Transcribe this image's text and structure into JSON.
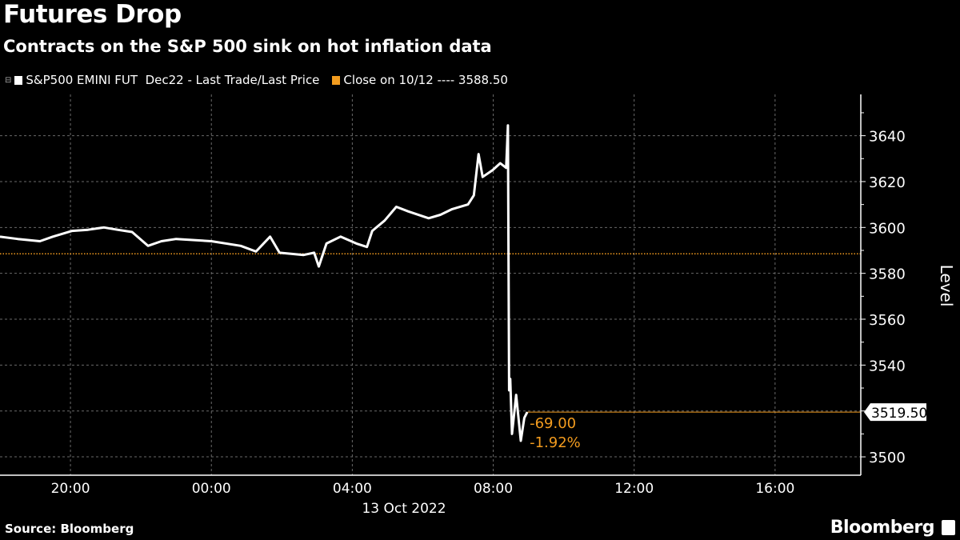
{
  "header": {
    "title": "Futures Drop",
    "subtitle": "Contracts on the S&P 500 sink on hot inflation data"
  },
  "legend": {
    "series_label": "S&P500 EMINI FUT  Dec22 - Last Trade/Last Price",
    "close_label": "Close on 10/12 ---- 3588.50"
  },
  "footer": {
    "source": "Source: Bloomberg",
    "logo": "Bloomberg"
  },
  "colors": {
    "background": "#000000",
    "series": "#ffffff",
    "close": "#f39c1f",
    "grid": "#777777"
  },
  "chart_data": {
    "type": "line",
    "title": "Futures Drop",
    "subtitle": "Contracts on the S&P 500 sink on hot inflation data",
    "xlabel": "13 Oct 2022",
    "ylabel": "Level",
    "x_range": [
      "2022-10-12T18:00",
      "2022-10-13T18:26"
    ],
    "xticks": [
      {
        "t": "2022-10-12T20:00",
        "label": "20:00"
      },
      {
        "t": "2022-10-13T00:00",
        "label": "00:00"
      },
      {
        "t": "2022-10-13T04:00",
        "label": "04:00"
      },
      {
        "t": "2022-10-13T08:00",
        "label": "08:00"
      },
      {
        "t": "2022-10-13T12:00",
        "label": "12:00"
      },
      {
        "t": "2022-10-13T16:00",
        "label": "16:00"
      }
    ],
    "ylim": [
      3492,
      3658
    ],
    "yticks": [
      3500,
      3520,
      3540,
      3560,
      3580,
      3600,
      3620,
      3640
    ],
    "grid": true,
    "legend_position": "top-left",
    "series": [
      {
        "name": "S&P500 EMINI FUT  Dec22 - Last Trade/Last Price",
        "points": [
          [
            "2022-10-12T18:00",
            3596
          ],
          [
            "2022-10-12T18:30",
            3595
          ],
          [
            "2022-10-12T19:08",
            3594
          ],
          [
            "2022-10-12T19:30",
            3596
          ],
          [
            "2022-10-12T20:03",
            3598.5
          ],
          [
            "2022-10-12T20:30",
            3599
          ],
          [
            "2022-10-12T20:57",
            3600
          ],
          [
            "2022-10-12T21:20",
            3599
          ],
          [
            "2022-10-12T21:45",
            3598
          ],
          [
            "2022-10-12T22:12",
            3592
          ],
          [
            "2022-10-12T22:35",
            3594
          ],
          [
            "2022-10-12T23:00",
            3595
          ],
          [
            "2022-10-13T00:00",
            3594
          ],
          [
            "2022-10-13T00:50",
            3592
          ],
          [
            "2022-10-13T01:16",
            3589.5
          ],
          [
            "2022-10-13T01:40",
            3596
          ],
          [
            "2022-10-13T01:56",
            3589
          ],
          [
            "2022-10-13T02:37",
            3588
          ],
          [
            "2022-10-13T02:55",
            3589
          ],
          [
            "2022-10-13T03:03",
            3583
          ],
          [
            "2022-10-13T03:16",
            3593
          ],
          [
            "2022-10-13T03:40",
            3596
          ],
          [
            "2022-10-13T04:07",
            3593
          ],
          [
            "2022-10-13T04:25",
            3591.5
          ],
          [
            "2022-10-13T04:34",
            3598.5
          ],
          [
            "2022-10-13T04:55",
            3603
          ],
          [
            "2022-10-13T05:15",
            3609
          ],
          [
            "2022-10-13T05:35",
            3607
          ],
          [
            "2022-10-13T06:10",
            3604
          ],
          [
            "2022-10-13T06:30",
            3605.5
          ],
          [
            "2022-10-13T06:50",
            3608
          ],
          [
            "2022-10-13T07:17",
            3610
          ],
          [
            "2022-10-13T07:27",
            3614
          ],
          [
            "2022-10-13T07:35",
            3632
          ],
          [
            "2022-10-13T07:42",
            3622
          ],
          [
            "2022-10-13T07:59",
            3625
          ],
          [
            "2022-10-13T08:12",
            3628
          ],
          [
            "2022-10-13T08:22",
            3626
          ],
          [
            "2022-10-13T08:25",
            3644.5
          ],
          [
            "2022-10-13T08:27",
            3529
          ],
          [
            "2022-10-13T08:29",
            3534
          ],
          [
            "2022-10-13T08:32",
            3510
          ],
          [
            "2022-10-13T08:39",
            3527
          ],
          [
            "2022-10-13T08:43",
            3517
          ],
          [
            "2022-10-13T08:47",
            3507
          ],
          [
            "2022-10-13T08:53",
            3517
          ],
          [
            "2022-10-13T08:58",
            3519.5
          ]
        ]
      }
    ],
    "reference_line": {
      "label": "Close on 10/12",
      "value": 3588.5
    },
    "last_value_label": "3519.50",
    "annotations": {
      "change": "-69.00",
      "change_pct": "-1.92%"
    }
  }
}
